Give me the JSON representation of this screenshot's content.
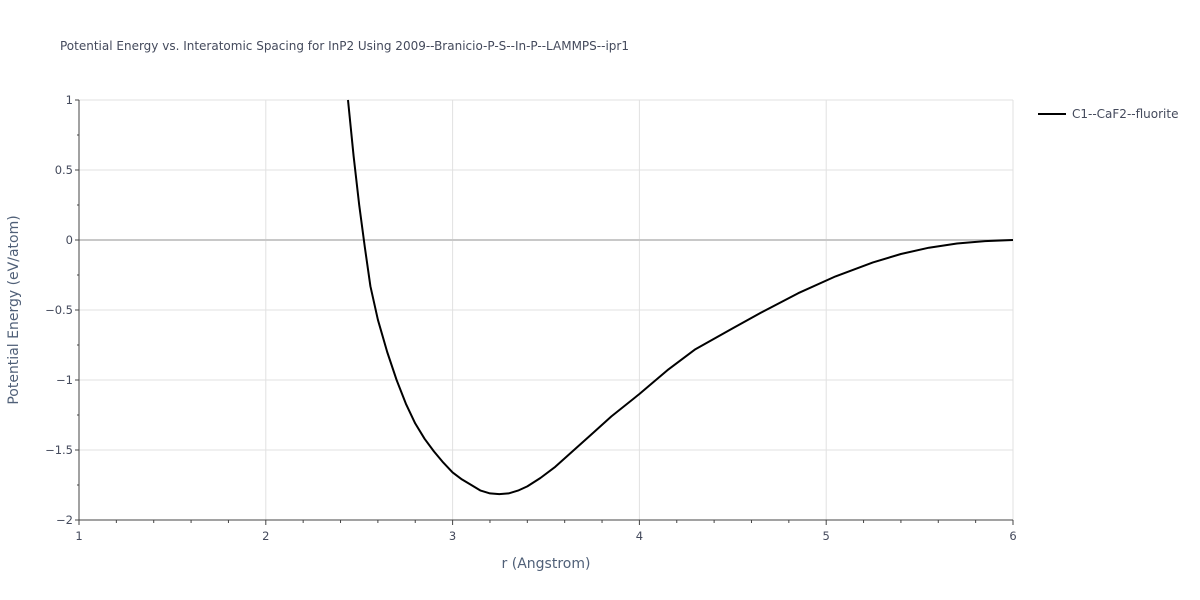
{
  "chart_data": {
    "type": "line",
    "title": "Potential Energy vs. Interatomic Spacing for InP2 Using 2009--Branicio-P-S--In-P--LAMMPS--ipr1",
    "xlabel": "r (Angstrom)",
    "ylabel": "Potential Energy (eV/atom)",
    "xlim": [
      1,
      6
    ],
    "ylim": [
      -2,
      1
    ],
    "x_ticks": [
      1,
      2,
      3,
      4,
      5,
      6
    ],
    "x_tick_labels": [
      "1",
      "2",
      "3",
      "4",
      "5",
      "6"
    ],
    "y_ticks": [
      1,
      0.5,
      0,
      -0.5,
      -1,
      -1.5,
      -2
    ],
    "y_tick_labels": [
      "1",
      "0.5",
      "0",
      "−0.5",
      "−1",
      "−1.5",
      "−2"
    ],
    "grid": true,
    "legend_position": "top-right",
    "series": [
      {
        "name": "C1--CaF2--fluorite",
        "color": "#000000",
        "x": [
          2.44,
          2.47,
          2.5,
          2.53,
          2.56,
          2.6,
          2.65,
          2.7,
          2.75,
          2.8,
          2.85,
          2.9,
          2.95,
          3.0,
          3.05,
          3.1,
          3.15,
          3.2,
          3.25,
          3.3,
          3.35,
          3.4,
          3.47,
          3.55,
          3.65,
          3.75,
          3.85,
          4.0,
          4.15,
          4.3,
          4.5,
          4.65,
          4.85,
          5.05,
          5.25,
          5.4,
          5.55,
          5.7,
          5.85,
          6.0
        ],
        "y": [
          1.0,
          0.6,
          0.25,
          -0.05,
          -0.33,
          -0.57,
          -0.8,
          -1.0,
          -1.17,
          -1.31,
          -1.42,
          -1.51,
          -1.59,
          -1.66,
          -1.71,
          -1.75,
          -1.79,
          -1.81,
          -1.815,
          -1.81,
          -1.79,
          -1.76,
          -1.7,
          -1.62,
          -1.5,
          -1.38,
          -1.26,
          -1.1,
          -0.93,
          -0.78,
          -0.63,
          -0.52,
          -0.38,
          -0.26,
          -0.16,
          -0.1,
          -0.055,
          -0.025,
          -0.008,
          0.0
        ]
      }
    ]
  }
}
